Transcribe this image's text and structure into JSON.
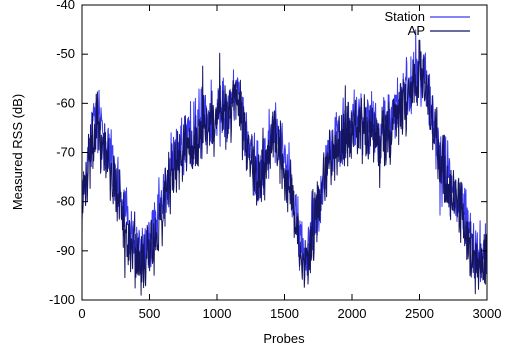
{
  "chart_data": {
    "type": "line",
    "xlabel": "Probes",
    "ylabel": "Measured RSS (dB)",
    "xlim": [
      0,
      3000
    ],
    "ylim": [
      -100,
      -40
    ],
    "xticks": [
      0,
      500,
      1000,
      1500,
      2000,
      2500,
      3000
    ],
    "yticks": [
      -100,
      -90,
      -80,
      -70,
      -60,
      -50,
      -40
    ],
    "grid": false,
    "legend_position": "top-right",
    "series": [
      {
        "name": "Station",
        "color": "#3a3af0",
        "x": [
          0,
          50,
          100,
          150,
          200,
          250,
          300,
          350,
          400,
          450,
          500,
          550,
          600,
          650,
          700,
          750,
          800,
          850,
          900,
          950,
          1000,
          1050,
          1100,
          1150,
          1200,
          1250,
          1300,
          1350,
          1400,
          1450,
          1500,
          1550,
          1600,
          1650,
          1700,
          1750,
          1800,
          1850,
          1900,
          1950,
          2000,
          2050,
          2100,
          2150,
          2200,
          2250,
          2300,
          2350,
          2400,
          2450,
          2500,
          2550,
          2600,
          2650,
          2700,
          2750,
          2800,
          2850,
          2900,
          2950,
          3000
        ],
        "y": [
          -80,
          -70,
          -63,
          -65,
          -70,
          -75,
          -80,
          -86,
          -90,
          -91,
          -88,
          -84,
          -79,
          -74,
          -70,
          -68,
          -67,
          -65,
          -63,
          -62,
          -62,
          -61,
          -60,
          -57,
          -64,
          -70,
          -74,
          -72,
          -66,
          -67,
          -72,
          -77,
          -86,
          -91,
          -86,
          -80,
          -73,
          -69,
          -67,
          -65,
          -64,
          -63,
          -63,
          -64,
          -66,
          -64,
          -62,
          -60,
          -58,
          -56,
          -52,
          -57,
          -63,
          -69,
          -74,
          -77,
          -80,
          -84,
          -89,
          -91,
          -90
        ]
      },
      {
        "name": "AP",
        "color": "#141460",
        "x": [
          0,
          50,
          100,
          150,
          200,
          250,
          300,
          350,
          400,
          450,
          500,
          550,
          600,
          650,
          700,
          750,
          800,
          850,
          900,
          950,
          1000,
          1050,
          1100,
          1150,
          1200,
          1250,
          1300,
          1350,
          1400,
          1450,
          1500,
          1550,
          1600,
          1650,
          1700,
          1750,
          1800,
          1850,
          1900,
          1950,
          2000,
          2050,
          2100,
          2150,
          2200,
          2250,
          2300,
          2350,
          2400,
          2450,
          2500,
          2550,
          2600,
          2650,
          2700,
          2750,
          2800,
          2850,
          2900,
          2950,
          3000
        ],
        "y": [
          -82,
          -72,
          -65,
          -67,
          -72,
          -78,
          -83,
          -88,
          -92,
          -93,
          -90,
          -86,
          -81,
          -76,
          -72,
          -70,
          -69,
          -67,
          -65,
          -64,
          -64,
          -63,
          -62,
          -59,
          -66,
          -72,
          -76,
          -74,
          -68,
          -69,
          -74,
          -79,
          -88,
          -93,
          -88,
          -82,
          -75,
          -71,
          -69,
          -67,
          -66,
          -65,
          -65,
          -66,
          -68,
          -66,
          -64,
          -62,
          -60,
          -58,
          -54,
          -59,
          -65,
          -71,
          -76,
          -79,
          -82,
          -86,
          -91,
          -93,
          -92
        ]
      }
    ]
  }
}
